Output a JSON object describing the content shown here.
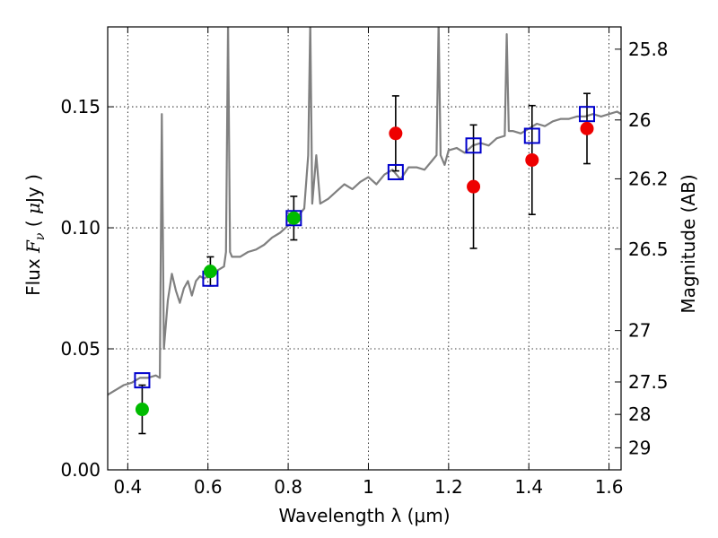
{
  "chart_data": {
    "type": "scatter",
    "title": "",
    "xlabel": "Wavelength  λ (μm)",
    "ylabel": {
      "prefix": "Flux ",
      "symbol": "F",
      "subscript": "ν",
      "unit_open": " ( ",
      "unit_mu": "μ",
      "unit_rest": "Jy )"
    },
    "y2label": "Magnitude (AB)",
    "xlim": [
      0.35,
      1.63
    ],
    "ylim": [
      0.0,
      0.183
    ],
    "grid": true,
    "legend": "none",
    "x_ticks": [
      {
        "value": 0.4,
        "label": "0.4"
      },
      {
        "value": 0.6,
        "label": "0.6"
      },
      {
        "value": 0.8,
        "label": "0.8"
      },
      {
        "value": 1.0,
        "label": "1"
      },
      {
        "value": 1.2,
        "label": "1.2"
      },
      {
        "value": 1.4,
        "label": "1.4"
      },
      {
        "value": 1.6,
        "label": "1.6"
      }
    ],
    "y_ticks": [
      {
        "value": 0.0,
        "label": "0.00"
      },
      {
        "value": 0.05,
        "label": "0.05"
      },
      {
        "value": 0.1,
        "label": "0.10"
      },
      {
        "value": 0.15,
        "label": "0.15"
      }
    ],
    "y2_ticks": [
      {
        "mag": 25.8,
        "label": "25.8"
      },
      {
        "mag": 26,
        "label": "26"
      },
      {
        "mag": 26.2,
        "label": "26.2"
      },
      {
        "mag": 26.5,
        "label": "26.5"
      },
      {
        "mag": 27,
        "label": "27"
      },
      {
        "mag": 27.5,
        "label": "27.5"
      },
      {
        "mag": 28,
        "label": "28"
      },
      {
        "mag": 29,
        "label": "29"
      }
    ],
    "series": [
      {
        "kind": "spectrum",
        "color": "#808080",
        "x": [
          0.35,
          0.37,
          0.39,
          0.41,
          0.43,
          0.45,
          0.47,
          0.48,
          0.485,
          0.49,
          0.495,
          0.5,
          0.51,
          0.52,
          0.53,
          0.54,
          0.55,
          0.56,
          0.57,
          0.58,
          0.59,
          0.6,
          0.62,
          0.64,
          0.645,
          0.65,
          0.655,
          0.66,
          0.68,
          0.7,
          0.72,
          0.74,
          0.76,
          0.78,
          0.8,
          0.82,
          0.84,
          0.85,
          0.855,
          0.86,
          0.87,
          0.88,
          0.9,
          0.92,
          0.94,
          0.96,
          0.98,
          1.0,
          1.02,
          1.04,
          1.06,
          1.08,
          1.1,
          1.12,
          1.14,
          1.16,
          1.17,
          1.175,
          1.18,
          1.19,
          1.2,
          1.22,
          1.24,
          1.26,
          1.28,
          1.3,
          1.32,
          1.34,
          1.345,
          1.35,
          1.36,
          1.38,
          1.4,
          1.42,
          1.44,
          1.46,
          1.48,
          1.5,
          1.52,
          1.54,
          1.56,
          1.58,
          1.6,
          1.62,
          1.63
        ],
        "y": [
          0.031,
          0.033,
          0.035,
          0.036,
          0.038,
          0.038,
          0.039,
          0.038,
          0.147,
          0.05,
          0.06,
          0.07,
          0.081,
          0.074,
          0.069,
          0.075,
          0.078,
          0.072,
          0.078,
          0.08,
          0.079,
          0.08,
          0.082,
          0.084,
          0.09,
          0.185,
          0.09,
          0.088,
          0.088,
          0.09,
          0.091,
          0.093,
          0.096,
          0.098,
          0.101,
          0.104,
          0.108,
          0.13,
          0.185,
          0.11,
          0.13,
          0.11,
          0.112,
          0.115,
          0.118,
          0.116,
          0.119,
          0.121,
          0.118,
          0.122,
          0.124,
          0.12,
          0.125,
          0.125,
          0.124,
          0.128,
          0.13,
          0.185,
          0.13,
          0.126,
          0.132,
          0.133,
          0.131,
          0.134,
          0.135,
          0.134,
          0.137,
          0.138,
          0.18,
          0.14,
          0.14,
          0.139,
          0.141,
          0.143,
          0.142,
          0.144,
          0.145,
          0.145,
          0.146,
          0.146,
          0.147,
          0.146,
          0.147,
          0.148,
          0.147
        ]
      },
      {
        "kind": "points",
        "name": "",
        "color": "#00bb00",
        "points": [
          {
            "x": 0.436,
            "y": 0.025,
            "yerr": 0.01
          },
          {
            "x": 0.606,
            "y": 0.082,
            "yerr": 0.006
          },
          {
            "x": 0.814,
            "y": 0.104,
            "yerr": 0.009
          }
        ]
      },
      {
        "kind": "points",
        "name": "",
        "color": "#ee0000",
        "points": [
          {
            "x": 1.068,
            "y": 0.139,
            "yerr": 0.0155
          },
          {
            "x": 1.262,
            "y": 0.117,
            "yerr": 0.0255
          },
          {
            "x": 1.408,
            "y": 0.128,
            "yerr": 0.0225
          },
          {
            "x": 1.545,
            "y": 0.141,
            "yerr": 0.0145
          }
        ]
      },
      {
        "kind": "model-squares",
        "name": "",
        "color": "#0000cc",
        "points": [
          {
            "x": 0.436,
            "y": 0.037
          },
          {
            "x": 0.606,
            "y": 0.079
          },
          {
            "x": 0.814,
            "y": 0.104
          },
          {
            "x": 1.068,
            "y": 0.123
          },
          {
            "x": 1.262,
            "y": 0.134
          },
          {
            "x": 1.408,
            "y": 0.138
          },
          {
            "x": 1.545,
            "y": 0.147
          }
        ]
      }
    ]
  }
}
